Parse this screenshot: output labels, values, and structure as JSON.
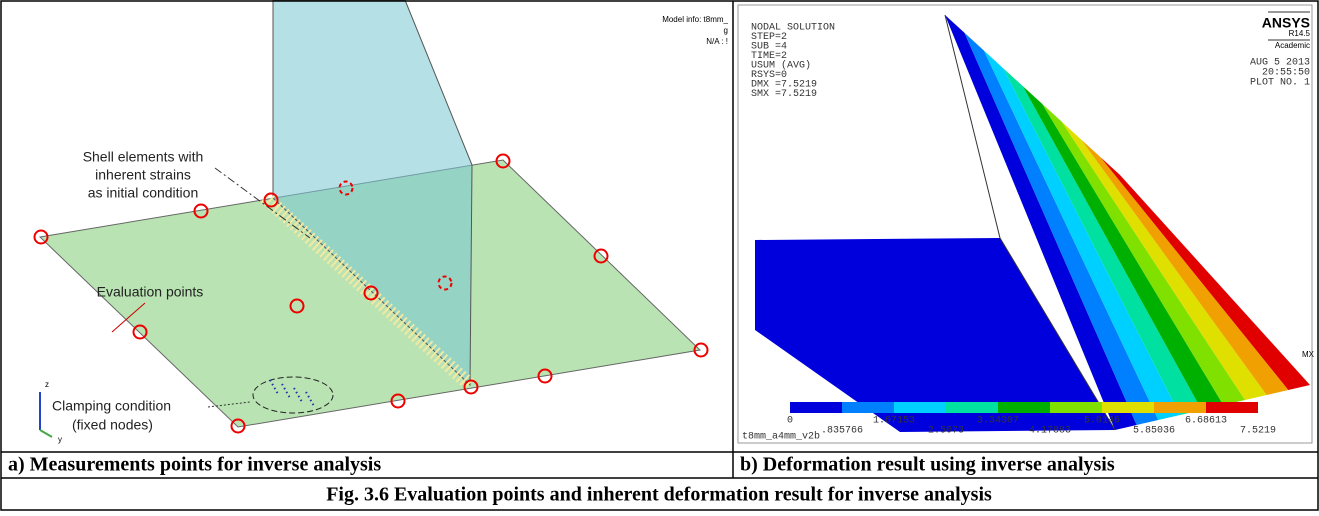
{
  "left_panel": {
    "model_info": "Model info: t8mm_",
    "model_info_2": "g",
    "na": "N/A : !",
    "shell_label": [
      "Shell elements with",
      "inherent strains",
      "as initial condition"
    ],
    "evaluation_label": "Evaluation points",
    "clamping_label": [
      "Clamping condition",
      "(fixed nodes)"
    ],
    "axes": [
      "z",
      "y"
    ]
  },
  "right_panel": {
    "legend_lines": [
      "NODAL SOLUTION",
      "STEP=2",
      "SUB =4",
      "TIME=2",
      "USUM     (AVG)",
      "RSYS=0",
      "DMX =7.5219",
      "SMX =7.5219"
    ],
    "brand": "ANSYS",
    "version": "R14.5",
    "license": "Academic",
    "date": "AUG  5 2013",
    "time": "20:55:50",
    "plot": "PLOT NO.   1",
    "colorbar_labels": [
      "0",
      ".835766",
      "1.67153",
      "2.5073",
      "3.34307",
      "4.17883",
      "5.0146",
      "5.85036",
      "6.68613",
      "7.5219"
    ],
    "file": "t8mm_a4mm_v2b",
    "mx": "MX"
  },
  "captions": {
    "a": "a) Measurements points for inverse analysis",
    "b": "b) Deformation result using inverse analysis",
    "figure": "Fig. 3.6 Evaluation points and inherent deformation result for inverse analysis"
  }
}
